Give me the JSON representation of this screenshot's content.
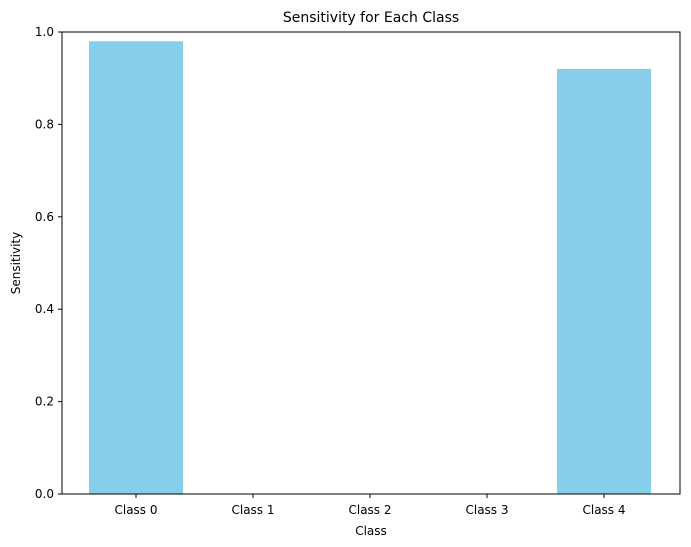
{
  "chart_data": {
    "type": "bar",
    "title": "Sensitivity for Each Class",
    "xlabel": "Class",
    "ylabel": "Sensitivity",
    "categories": [
      "Class 0",
      "Class 1",
      "Class 2",
      "Class 3",
      "Class 4"
    ],
    "values": [
      0.98,
      0.0,
      0.0,
      0.0,
      0.92
    ],
    "ylim": [
      0,
      1.0
    ],
    "yticks": [
      "0.0",
      "0.2",
      "0.4",
      "0.6",
      "0.8",
      "1.0"
    ],
    "bar_color": "#87CEEB",
    "grid": false
  }
}
